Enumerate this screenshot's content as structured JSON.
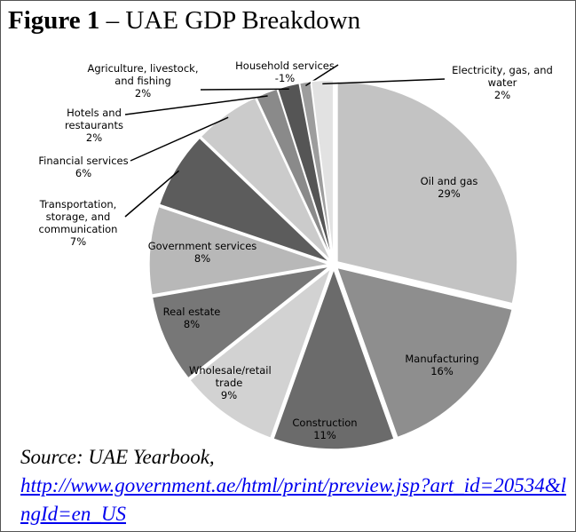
{
  "chart_data": {
    "type": "pie",
    "figure_label": "Figure 1",
    "title": "– UAE GDP Breakdown",
    "categories": [
      "Oil and gas",
      "Manufacturing",
      "Construction",
      "Wholesale/retail trade",
      "Real estate",
      "Government services",
      "Transportation, storage, and communication",
      "Financial services",
      "Hotels and restaurants",
      "Agriculture, livestock, and fishing",
      "Household services",
      "Electricity, gas, and water"
    ],
    "values": [
      29,
      16,
      11,
      9,
      8,
      8,
      7,
      6,
      2,
      2,
      -1,
      2
    ],
    "value_labels": [
      "29%",
      "16%",
      "11%",
      "9%",
      "8%",
      "8%",
      "7%",
      "6%",
      "2%",
      "2%",
      "-1%",
      "2%"
    ],
    "colors": [
      "#c3c3c3",
      "#8e8e8e",
      "#6b6b6b",
      "#d2d2d2",
      "#777777",
      "#b8b8b8",
      "#5c5c5c",
      "#cbcbcb",
      "#8a8a8a",
      "#555555",
      "#9d9d9d",
      "#e2e2e2"
    ],
    "source": "Source: UAE Yearbook,",
    "source_url": "http://www.government.ae/html/print/preview.jsp?art_id=20534&lngId=en_US"
  }
}
